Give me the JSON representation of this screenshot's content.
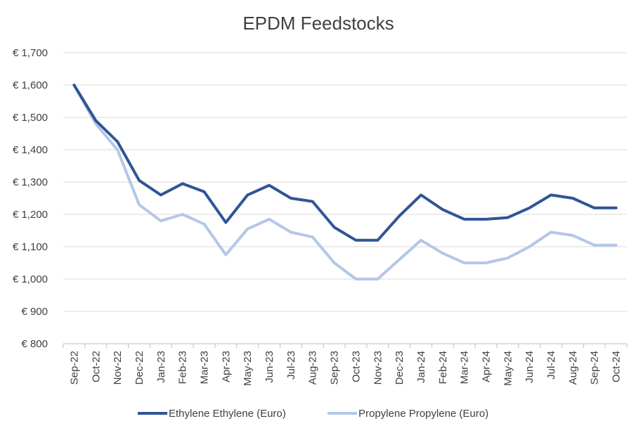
{
  "chart_data": {
    "type": "line",
    "title": "EPDM Feedstocks",
    "xlabel": "",
    "ylabel": "",
    "ylim": [
      800,
      1700
    ],
    "ytick_step": 100,
    "ytick_labels": [
      "€ 800",
      "€ 900",
      "€ 1,000",
      "€ 1,100",
      "€ 1,200",
      "€ 1,300",
      "€ 1,400",
      "€ 1,500",
      "€ 1,600",
      "€ 1,700"
    ],
    "grid": true,
    "legend_position": "bottom",
    "categories": [
      "Sep-22",
      "Oct-22",
      "Nov-22",
      "Dec-22",
      "Jan-23",
      "Feb-23",
      "Mar-23",
      "Apr-23",
      "May-23",
      "Jun-23",
      "Jul-23",
      "Aug-23",
      "Sep-23",
      "Oct-23",
      "Nov-23",
      "Dec-23",
      "Jan-24",
      "Feb-24",
      "Mar-24",
      "Apr-24",
      "May-24",
      "Jun-24",
      "Jul-24",
      "Aug-24",
      "Sep-24",
      "Oct-24"
    ],
    "series": [
      {
        "name": "Ethylene Ethylene (Euro)",
        "color": "#2F5597",
        "values": [
          1600,
          1490,
          1425,
          1305,
          1260,
          1295,
          1270,
          1175,
          1260,
          1290,
          1250,
          1240,
          1160,
          1120,
          1120,
          1195,
          1260,
          1215,
          1185,
          1185,
          1190,
          1220,
          1260,
          1250,
          1220,
          1220
        ]
      },
      {
        "name": "Propylene Propylene (Euro)",
        "color": "#B4C7E7",
        "values": [
          1600,
          1480,
          1400,
          1230,
          1180,
          1200,
          1170,
          1075,
          1155,
          1185,
          1145,
          1130,
          1050,
          1000,
          1000,
          1060,
          1120,
          1080,
          1050,
          1050,
          1065,
          1100,
          1145,
          1135,
          1105,
          1105
        ]
      }
    ]
  }
}
